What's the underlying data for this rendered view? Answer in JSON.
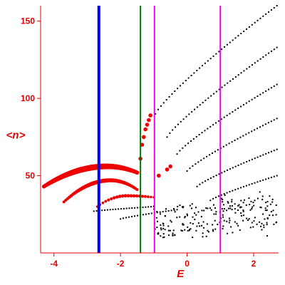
{
  "chart_data": {
    "type": "scatter",
    "title": "",
    "xlabel": "E",
    "ylabel": "<n>",
    "xlim": [
      -4.4,
      2.75
    ],
    "ylim": [
      0,
      160
    ],
    "x_ticks": [
      -4,
      -2,
      0,
      2
    ],
    "y_ticks": [
      50,
      100,
      150
    ],
    "x_tick_labels": [
      "-4",
      "-2",
      "0",
      "2"
    ],
    "y_tick_labels": [
      "50",
      "100",
      "150"
    ],
    "grid": false,
    "legend": "none",
    "colors": {
      "axis": "#e00000",
      "red_points": "#ee0000",
      "black_points": "#000000",
      "blue_line": "#0000ee",
      "green_line": "#007700",
      "magenta_line": "#ee00ee"
    },
    "vertical_lines": [
      {
        "x": -2.65,
        "color": "#0000ee"
      },
      {
        "x": -1.4,
        "color": "#007700"
      },
      {
        "x": -0.98,
        "color": "#ee00ee"
      },
      {
        "x": 1.0,
        "color": "#ee00ee"
      }
    ],
    "red_branches": [
      {
        "x_start": -4.3,
        "x_end": -1.5,
        "y_start": 43,
        "y_end": 52,
        "peak_x": -2.4,
        "peak_y": 56,
        "count": 60,
        "size": 3.5
      },
      {
        "x_start": -3.7,
        "x_end": -1.5,
        "y_start": 33,
        "y_end": 41,
        "peak_x": -2.3,
        "peak_y": 47,
        "count": 40,
        "size": 2.5
      },
      {
        "x_start": -2.7,
        "x_end": -1.0,
        "y_start": 30,
        "y_end": 36,
        "peak_x": -1.8,
        "peak_y": 37,
        "count": 20,
        "size": 2
      }
    ],
    "red_points": [
      {
        "x": -1.4,
        "y": 61
      },
      {
        "x": -1.35,
        "y": 70
      },
      {
        "x": -1.3,
        "y": 75
      },
      {
        "x": -1.25,
        "y": 80
      },
      {
        "x": -1.2,
        "y": 83
      },
      {
        "x": -1.15,
        "y": 86
      },
      {
        "x": -1.1,
        "y": 89
      },
      {
        "x": -0.85,
        "y": 50
      },
      {
        "x": -0.6,
        "y": 54
      },
      {
        "x": -0.5,
        "y": 56
      }
    ],
    "black_bands": [
      {
        "x_start": -0.95,
        "x_end": 2.7,
        "y_start": 90,
        "y_end": 160
      },
      {
        "x_start": -0.6,
        "x_end": 2.7,
        "y_start": 75,
        "y_end": 133
      },
      {
        "x_start": -0.3,
        "x_end": 2.7,
        "y_start": 64,
        "y_end": 109
      },
      {
        "x_start": 0.0,
        "x_end": 2.7,
        "y_start": 53,
        "y_end": 87
      },
      {
        "x_start": 0.3,
        "x_end": 2.7,
        "y_start": 43,
        "y_end": 67
      },
      {
        "x_start": 0.7,
        "x_end": 2.7,
        "y_start": 34,
        "y_end": 50
      },
      {
        "x_start": -2.8,
        "x_end": -1.0,
        "y_start": 27,
        "y_end": 30
      },
      {
        "x_start": -2.0,
        "x_end": -0.3,
        "y_start": 22,
        "y_end": 28
      }
    ]
  }
}
